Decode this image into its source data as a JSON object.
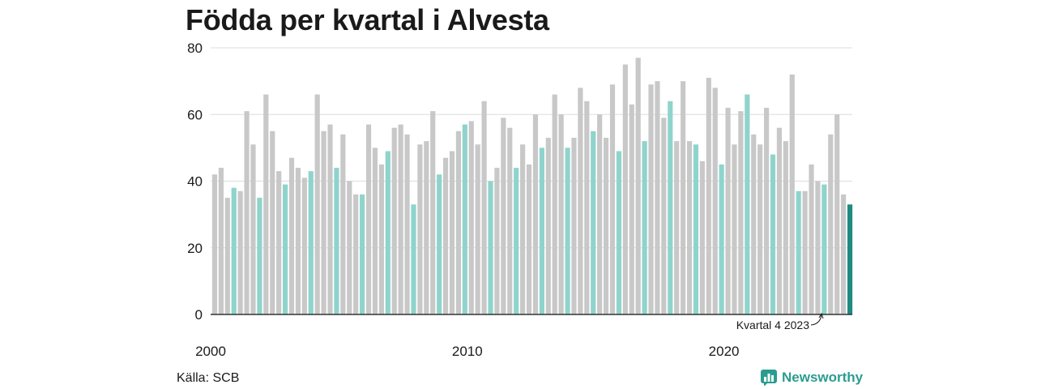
{
  "title": "Födda per kvartal i Alvesta",
  "source": "Källa: SCB",
  "brand": {
    "name": "Newsworthy",
    "icon": "bar-chart-icon"
  },
  "colors": {
    "default": "#c8c8c8",
    "q4": "#8fd4cc",
    "highlight": "#1f8a80",
    "grid": "#dddddd",
    "axis": "#333333"
  },
  "chart_data": {
    "type": "bar",
    "title": "Födda per kvartal i Alvesta",
    "xlabel": "",
    "ylabel": "",
    "ylim": [
      0,
      80
    ],
    "yticks": [
      0,
      20,
      40,
      60,
      80
    ],
    "xticks": [
      "2000",
      "2010",
      "2020"
    ],
    "grid": true,
    "annotation": "Kvartal 4 2023",
    "start": "2000 Q1",
    "values": [
      42,
      44,
      35,
      38,
      37,
      61,
      51,
      35,
      66,
      55,
      43,
      39,
      47,
      44,
      41,
      43,
      66,
      55,
      57,
      44,
      54,
      40,
      36,
      36,
      57,
      50,
      45,
      49,
      56,
      57,
      54,
      33,
      51,
      52,
      61,
      42,
      47,
      49,
      55,
      57,
      58,
      51,
      64,
      40,
      44,
      59,
      56,
      44,
      51,
      45,
      60,
      50,
      53,
      66,
      60,
      50,
      53,
      68,
      64,
      55,
      60,
      53,
      69,
      49,
      75,
      63,
      77,
      52,
      69,
      70,
      59,
      64,
      52,
      70,
      52,
      51,
      46,
      71,
      68,
      45,
      62,
      51,
      61,
      66,
      54,
      51,
      62,
      48,
      56,
      52,
      72,
      37,
      37,
      45,
      40,
      39,
      54,
      60,
      36,
      33
    ]
  }
}
